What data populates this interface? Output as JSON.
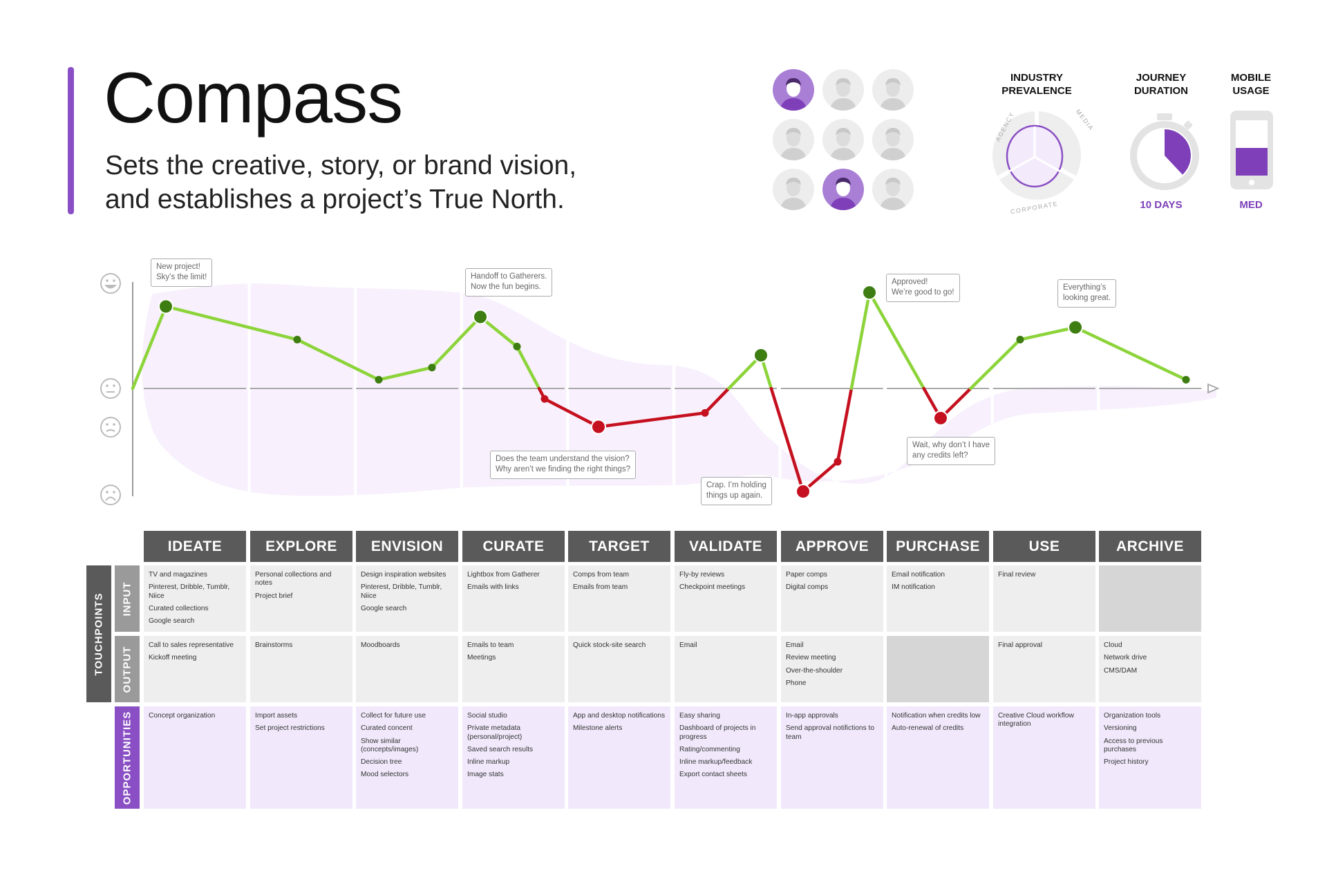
{
  "header": {
    "title": "Compass",
    "subtitle_lines": [
      "Sets the creative, story, or brand vision,",
      "and establishes a project’s True North."
    ]
  },
  "personas": {
    "count": 9,
    "active": [
      0,
      7
    ],
    "icons": [
      "persona-1-icon",
      "persona-2-icon",
      "persona-3-icon",
      "persona-4-icon",
      "persona-5-icon",
      "persona-6-icon",
      "persona-7-icon",
      "persona-8-icon",
      "persona-9-icon"
    ]
  },
  "industry": {
    "label_line1": "INDUSTRY",
    "label_line2": "PREVALENCE",
    "segments": [
      "AGENCY",
      "MEDIA",
      "CORPORATE"
    ]
  },
  "journey": {
    "label_line1": "JOURNEY",
    "label_line2": "DURATION",
    "value": "10 DAYS",
    "fill_fraction": 0.38
  },
  "mobile": {
    "label_line1": "MOBILE",
    "label_line2": "USAGE",
    "value": "MED",
    "fill_fraction": 0.5
  },
  "colors": {
    "accent": "#8a4fc4",
    "positive_line": "#8cd43a",
    "positive_dot": "#3d7d11",
    "negative": "#c5101f",
    "header_bg": "#5a5a5a",
    "opportunity_bg": "#f1e9fb"
  },
  "emotion_scale": {
    "icons": [
      "happy-face-icon",
      "neutral-face-icon",
      "slight-frown-face-icon",
      "sad-face-icon"
    ]
  },
  "annotations": [
    {
      "id": "a1",
      "lines": [
        "New project!",
        "Sky’s the limit!"
      ]
    },
    {
      "id": "a2",
      "lines": [
        "Handoff to Gatherers.",
        "Now the fun begins."
      ]
    },
    {
      "id": "a3",
      "lines": [
        "Does the team understand the vision?",
        "Why aren’t we finding the right things?"
      ]
    },
    {
      "id": "a4",
      "lines": [
        "Crap. I’m holding",
        "things up again."
      ]
    },
    {
      "id": "a5",
      "lines": [
        "Approved!",
        "We’re good to go!"
      ]
    },
    {
      "id": "a6",
      "lines": [
        "Wait, why don’t I have",
        "any credits left?"
      ]
    },
    {
      "id": "a7",
      "lines": [
        "Everything’s",
        "looking great."
      ]
    }
  ],
  "row_labels": {
    "touchpoints": "TOUCHPOINTS",
    "input": "INPUT",
    "output": "OUTPUT",
    "opportunities": "OPPORTUNITIES"
  },
  "phases": [
    {
      "name": "IDEATE",
      "input": [
        "TV and magazines",
        "Pinterest, Dribble, Tumblr, Niice",
        "Curated collections",
        "Google search"
      ],
      "output": [
        "Call to sales representative",
        "Kickoff meeting"
      ],
      "opportunities": [
        "Concept organization"
      ]
    },
    {
      "name": "EXPLORE",
      "input": [
        "Personal collections and notes",
        "Project brief"
      ],
      "output": [
        "Brainstorms"
      ],
      "opportunities": [
        "Import assets",
        "Set project restrictions"
      ]
    },
    {
      "name": "ENVISION",
      "input": [
        "Design inspiration websites",
        "Pinterest, Dribble, Tumblr, Niice",
        "Google search"
      ],
      "output": [
        "Moodboards"
      ],
      "opportunities": [
        "Collect for future use",
        "Curated concent",
        "Show similar (concepts/images)",
        "Decision tree",
        "Mood selectors"
      ]
    },
    {
      "name": "CURATE",
      "input": [
        "Lightbox from Gatherer",
        "Emails with links"
      ],
      "output": [
        "Emails to team",
        "Meetings"
      ],
      "opportunities": [
        "Social studio",
        "Private metadata (personal/project)",
        "Saved search results",
        "Inline markup",
        "Image stats"
      ]
    },
    {
      "name": "TARGET",
      "input": [
        "Comps from team",
        "Emails from team"
      ],
      "output": [
        "Quick stock-site search"
      ],
      "opportunities": [
        "App and desktop notifications",
        "Milestone alerts"
      ]
    },
    {
      "name": "VALIDATE",
      "input": [
        "Fly-by reviews",
        "Checkpoint meetings"
      ],
      "output": [
        "Email"
      ],
      "opportunities": [
        "Easy sharing",
        "Dashboard of projects in progress",
        "Rating/commenting",
        "Inline markup/feedback",
        "Export contact sheets"
      ]
    },
    {
      "name": "APPROVE",
      "input": [
        "Paper comps",
        "Digital comps"
      ],
      "output": [
        "Email",
        "Review meeting",
        "Over-the-shoulder",
        "Phone"
      ],
      "opportunities": [
        "In-app approvals",
        "Send approval notifictions to team"
      ]
    },
    {
      "name": "PURCHASE",
      "input": [
        "Email notification",
        "IM notification"
      ],
      "output": [],
      "opportunities": [
        "Notification when credits low",
        "Auto-renewal of credits"
      ]
    },
    {
      "name": "USE",
      "input": [
        "Final review"
      ],
      "output": [
        "Final approval"
      ],
      "opportunities": [
        "Creative Cloud workflow integration"
      ]
    },
    {
      "name": "ARCHIVE",
      "input": [],
      "output": [
        "Cloud",
        "Network drive",
        "CMS/DAM"
      ],
      "opportunities": [
        "Organization tools",
        "Versioning",
        "Access to previous purchases",
        "Project history"
      ]
    }
  ],
  "chart_data": {
    "type": "line",
    "ylim": [
      -3,
      3
    ],
    "points": [
      {
        "y": 0.0,
        "major": false
      },
      {
        "y": 2.35,
        "major": true
      },
      {
        "y": 1.4,
        "major": false
      },
      {
        "y": 0.25,
        "major": false
      },
      {
        "y": 0.6,
        "major": false
      },
      {
        "y": 2.05,
        "major": true
      },
      {
        "y": 1.2,
        "major": false
      },
      {
        "y": -0.3,
        "major": false
      },
      {
        "y": -1.1,
        "major": true
      },
      {
        "y": -0.7,
        "major": false
      },
      {
        "y": 0.95,
        "major": true
      },
      {
        "y": -2.95,
        "major": true
      },
      {
        "y": -2.1,
        "major": false
      },
      {
        "y": 2.75,
        "major": true
      },
      {
        "y": -0.85,
        "major": true
      },
      {
        "y": 1.4,
        "major": false
      },
      {
        "y": 1.75,
        "major": true
      },
      {
        "y": 0.25,
        "major": false
      }
    ]
  }
}
